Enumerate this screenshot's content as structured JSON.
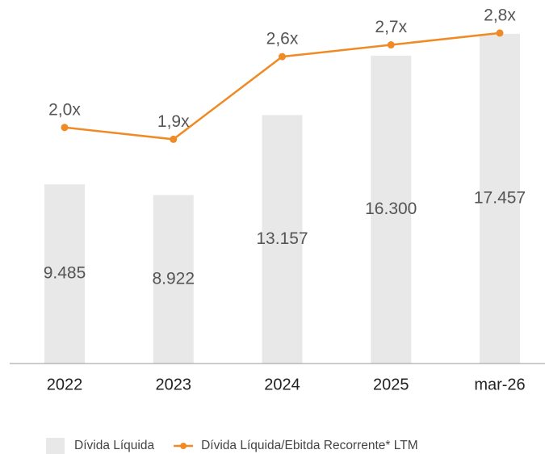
{
  "chart_data": {
    "type": "bar_line",
    "categories": [
      "2022",
      "2023",
      "2024",
      "2025",
      "mar-26"
    ],
    "series": [
      {
        "name": "Dívida Líquida",
        "type": "bar",
        "color": "#e8e8e8",
        "values": [
          9485,
          8922,
          13157,
          16300,
          17457
        ],
        "value_labels": [
          "9.485",
          "8.922",
          "13.157",
          "16.300",
          "17.457"
        ]
      },
      {
        "name": "Dívida Líquida/Ebitda Recorrente* LTM",
        "type": "line",
        "axis": "y2",
        "color": "#f08a24",
        "values": [
          2.0,
          1.9,
          2.6,
          2.7,
          2.8
        ],
        "value_labels": [
          "2,0x",
          "1,9x",
          "2,6x",
          "2,7x",
          "2,8x"
        ]
      }
    ],
    "ylim": [
      0,
      19250
    ],
    "y2lim": [
      0,
      3.08
    ],
    "legend": "bottom"
  }
}
